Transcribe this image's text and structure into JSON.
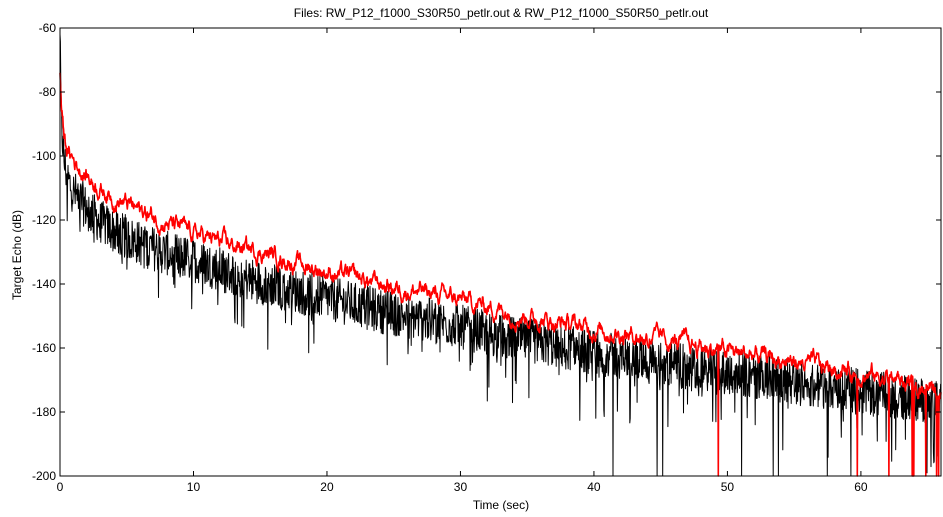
{
  "chart_data": {
    "type": "line",
    "title": "Files: RW_P12_f1000_S30R50_petlr.out & RW_P12_f1000_S50R50_petlr.out",
    "xlabel": "Time (sec)",
    "ylabel": "Target Echo (dB)",
    "xlim": [
      0,
      66
    ],
    "ylim": [
      -200,
      -60
    ],
    "xticks": [
      0,
      10,
      20,
      30,
      40,
      50,
      60
    ],
    "yticks": [
      -200,
      -180,
      -160,
      -140,
      -120,
      -100,
      -80,
      -60
    ],
    "grid": false,
    "legend": "none",
    "series": [
      {
        "color": "#000000",
        "x": [
          0,
          0.1,
          0.3,
          0.6,
          1,
          1.5,
          2,
          3,
          4,
          5,
          6,
          8,
          10,
          12,
          14,
          16,
          18,
          20,
          22,
          25,
          28,
          30,
          33,
          36,
          40,
          43,
          46,
          50,
          53,
          56,
          60,
          63,
          66
        ],
        "y": [
          -62,
          -88,
          -100,
          -106,
          -110,
          -112,
          -115,
          -119,
          -122,
          -124,
          -126,
          -129,
          -131,
          -134,
          -137,
          -139,
          -141,
          -143,
          -145,
          -148,
          -150,
          -152,
          -155,
          -157,
          -160,
          -162,
          -164,
          -166,
          -168,
          -170,
          -172,
          -174,
          -176
        ]
      },
      {
        "color": "#ff0000",
        "x": [
          0,
          0.1,
          0.3,
          0.6,
          1,
          1.5,
          2,
          3,
          4,
          5,
          6,
          8,
          10,
          12,
          14,
          16,
          18,
          20,
          22,
          25,
          28,
          30,
          33,
          36,
          40,
          43,
          46,
          50,
          53,
          56,
          60,
          63,
          66
        ],
        "y": [
          -74,
          -84,
          -94,
          -99,
          -101,
          -104,
          -106,
          -110,
          -113,
          -115,
          -117,
          -121,
          -124,
          -127,
          -129,
          -131,
          -134,
          -136,
          -138,
          -141,
          -143,
          -145,
          -148,
          -151,
          -154,
          -156,
          -158,
          -161,
          -163,
          -165,
          -168,
          -170,
          -174
        ]
      }
    ]
  }
}
